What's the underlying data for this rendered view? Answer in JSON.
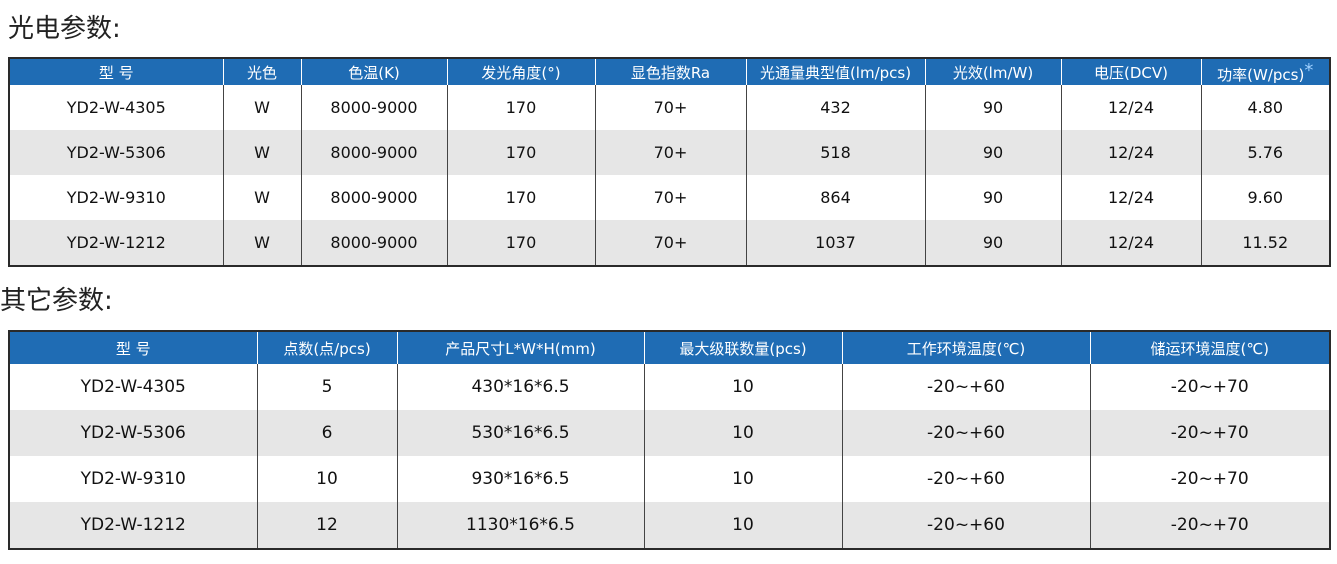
{
  "sections": [
    {
      "title": "光电参数:",
      "table": {
        "header": [
          "型 号",
          "光色",
          "色温(K)",
          "发光角度(°)",
          "显色指数Ra",
          "光通量典型值(lm/pcs)",
          "光效(lm/W)",
          "电压(DCV)",
          "功率(W/pcs)"
        ],
        "header_note": "*",
        "rows": [
          [
            "YD2-W-4305",
            "W",
            "8000-9000",
            "170",
            "70+",
            "432",
            "90",
            "12/24",
            "4.80"
          ],
          [
            "YD2-W-5306",
            "W",
            "8000-9000",
            "170",
            "70+",
            "518",
            "90",
            "12/24",
            "5.76"
          ],
          [
            "YD2-W-9310",
            "W",
            "8000-9000",
            "170",
            "70+",
            "864",
            "90",
            "12/24",
            "9.60"
          ],
          [
            "YD2-W-1212",
            "W",
            "8000-9000",
            "170",
            "70+",
            "1037",
            "90",
            "12/24",
            "11.52"
          ]
        ]
      }
    },
    {
      "title": "其它参数:",
      "table": {
        "header": [
          "型 号",
          "点数(点/pcs)",
          "产品尺寸L*W*H(mm)",
          "最大级联数量(pcs)",
          "工作环境温度(℃)",
          "储运环境温度(℃)"
        ],
        "rows": [
          [
            "YD2-W-4305",
            "5",
            "430*16*6.5",
            "10",
            "-20~+60",
            "-20~+70"
          ],
          [
            "YD2-W-5306",
            "6",
            "530*16*6.5",
            "10",
            "-20~+60",
            "-20~+70"
          ],
          [
            "YD2-W-9310",
            "10",
            "930*16*6.5",
            "10",
            "-20~+60",
            "-20~+70"
          ],
          [
            "YD2-W-1212",
            "12",
            "1130*16*6.5",
            "10",
            "-20~+60",
            "-20~+70"
          ]
        ]
      }
    }
  ]
}
